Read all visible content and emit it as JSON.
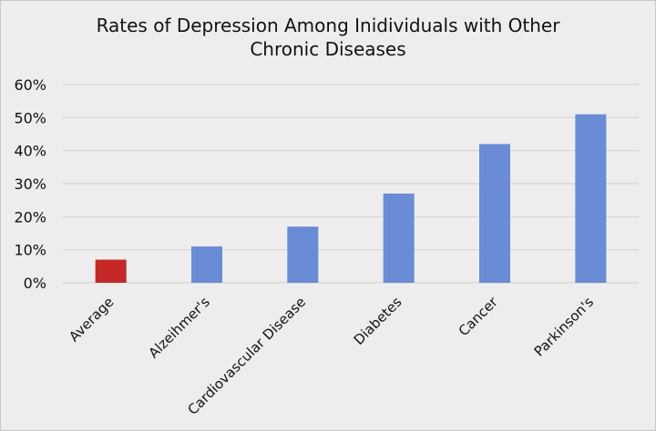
{
  "chart_data": {
    "type": "bar",
    "title": "Rates of Depression Among Inidividuals with Other Chronic Diseases",
    "title_lines": [
      "Rates of Depression Among Inidividuals with Other",
      "Chronic Diseases"
    ],
    "categories": [
      "Average",
      "Alzeihmer's",
      "Cardiovascular Disease",
      "Diabetes",
      "Cancer",
      "Parkinson's"
    ],
    "values": [
      7,
      11,
      17,
      27,
      42,
      51
    ],
    "value_unit": "%",
    "colors": [
      "#c62828",
      "#6a8cd6",
      "#6a8cd6",
      "#6a8cd6",
      "#6a8cd6",
      "#6a8cd6"
    ],
    "ylim": [
      0,
      60
    ],
    "yticks": [
      "0%",
      "10%",
      "20%",
      "30%",
      "40%",
      "50%",
      "60%"
    ],
    "grid": true,
    "legend": "none",
    "xlabel": "",
    "ylabel": ""
  }
}
